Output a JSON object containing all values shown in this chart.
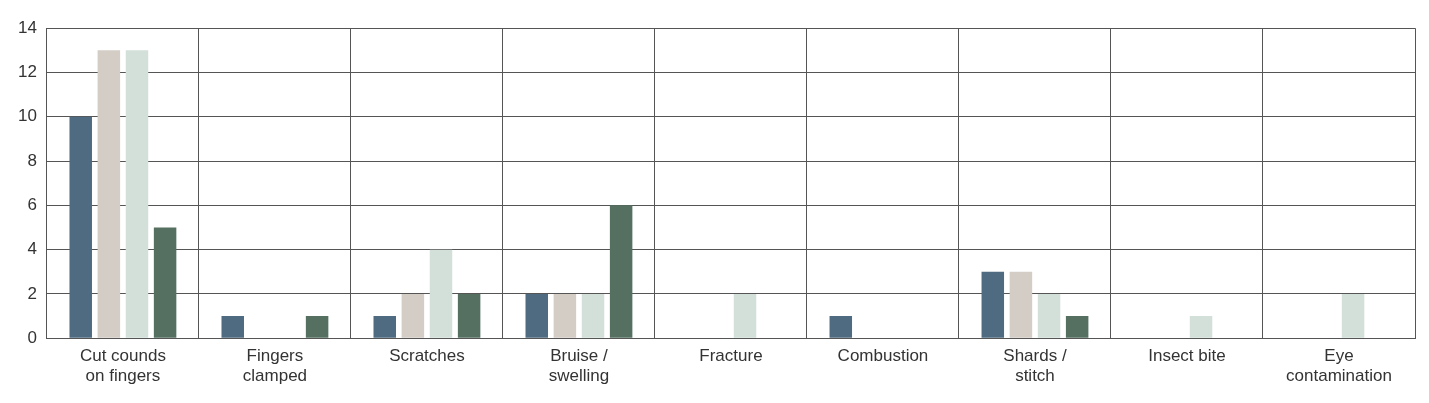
{
  "chart_data": {
    "type": "bar",
    "categories": [
      "Cut counds on fingers",
      "Fingers clamped",
      "Scratches",
      "Bruise / swelling",
      "Fracture",
      "Combustion",
      "Shards / stitch",
      "Insect bite",
      "Eye contamination"
    ],
    "series": [
      {
        "color": "#4e6b82",
        "values": [
          10,
          1,
          1,
          2,
          0,
          1,
          3,
          0,
          0
        ]
      },
      {
        "color": "#d3cdc6",
        "values": [
          13,
          0,
          2,
          2,
          0,
          0,
          3,
          0,
          0
        ]
      },
      {
        "color": "#d3e0d9",
        "values": [
          13,
          0,
          4,
          2,
          2,
          0,
          2,
          1,
          2
        ]
      },
      {
        "color": "#557060",
        "values": [
          5,
          1,
          2,
          6,
          0,
          0,
          1,
          0,
          0
        ]
      }
    ],
    "ylim": [
      0,
      14
    ],
    "yticks": [
      0,
      2,
      4,
      6,
      8,
      10,
      12,
      14
    ],
    "grid": true,
    "legend": false
  }
}
